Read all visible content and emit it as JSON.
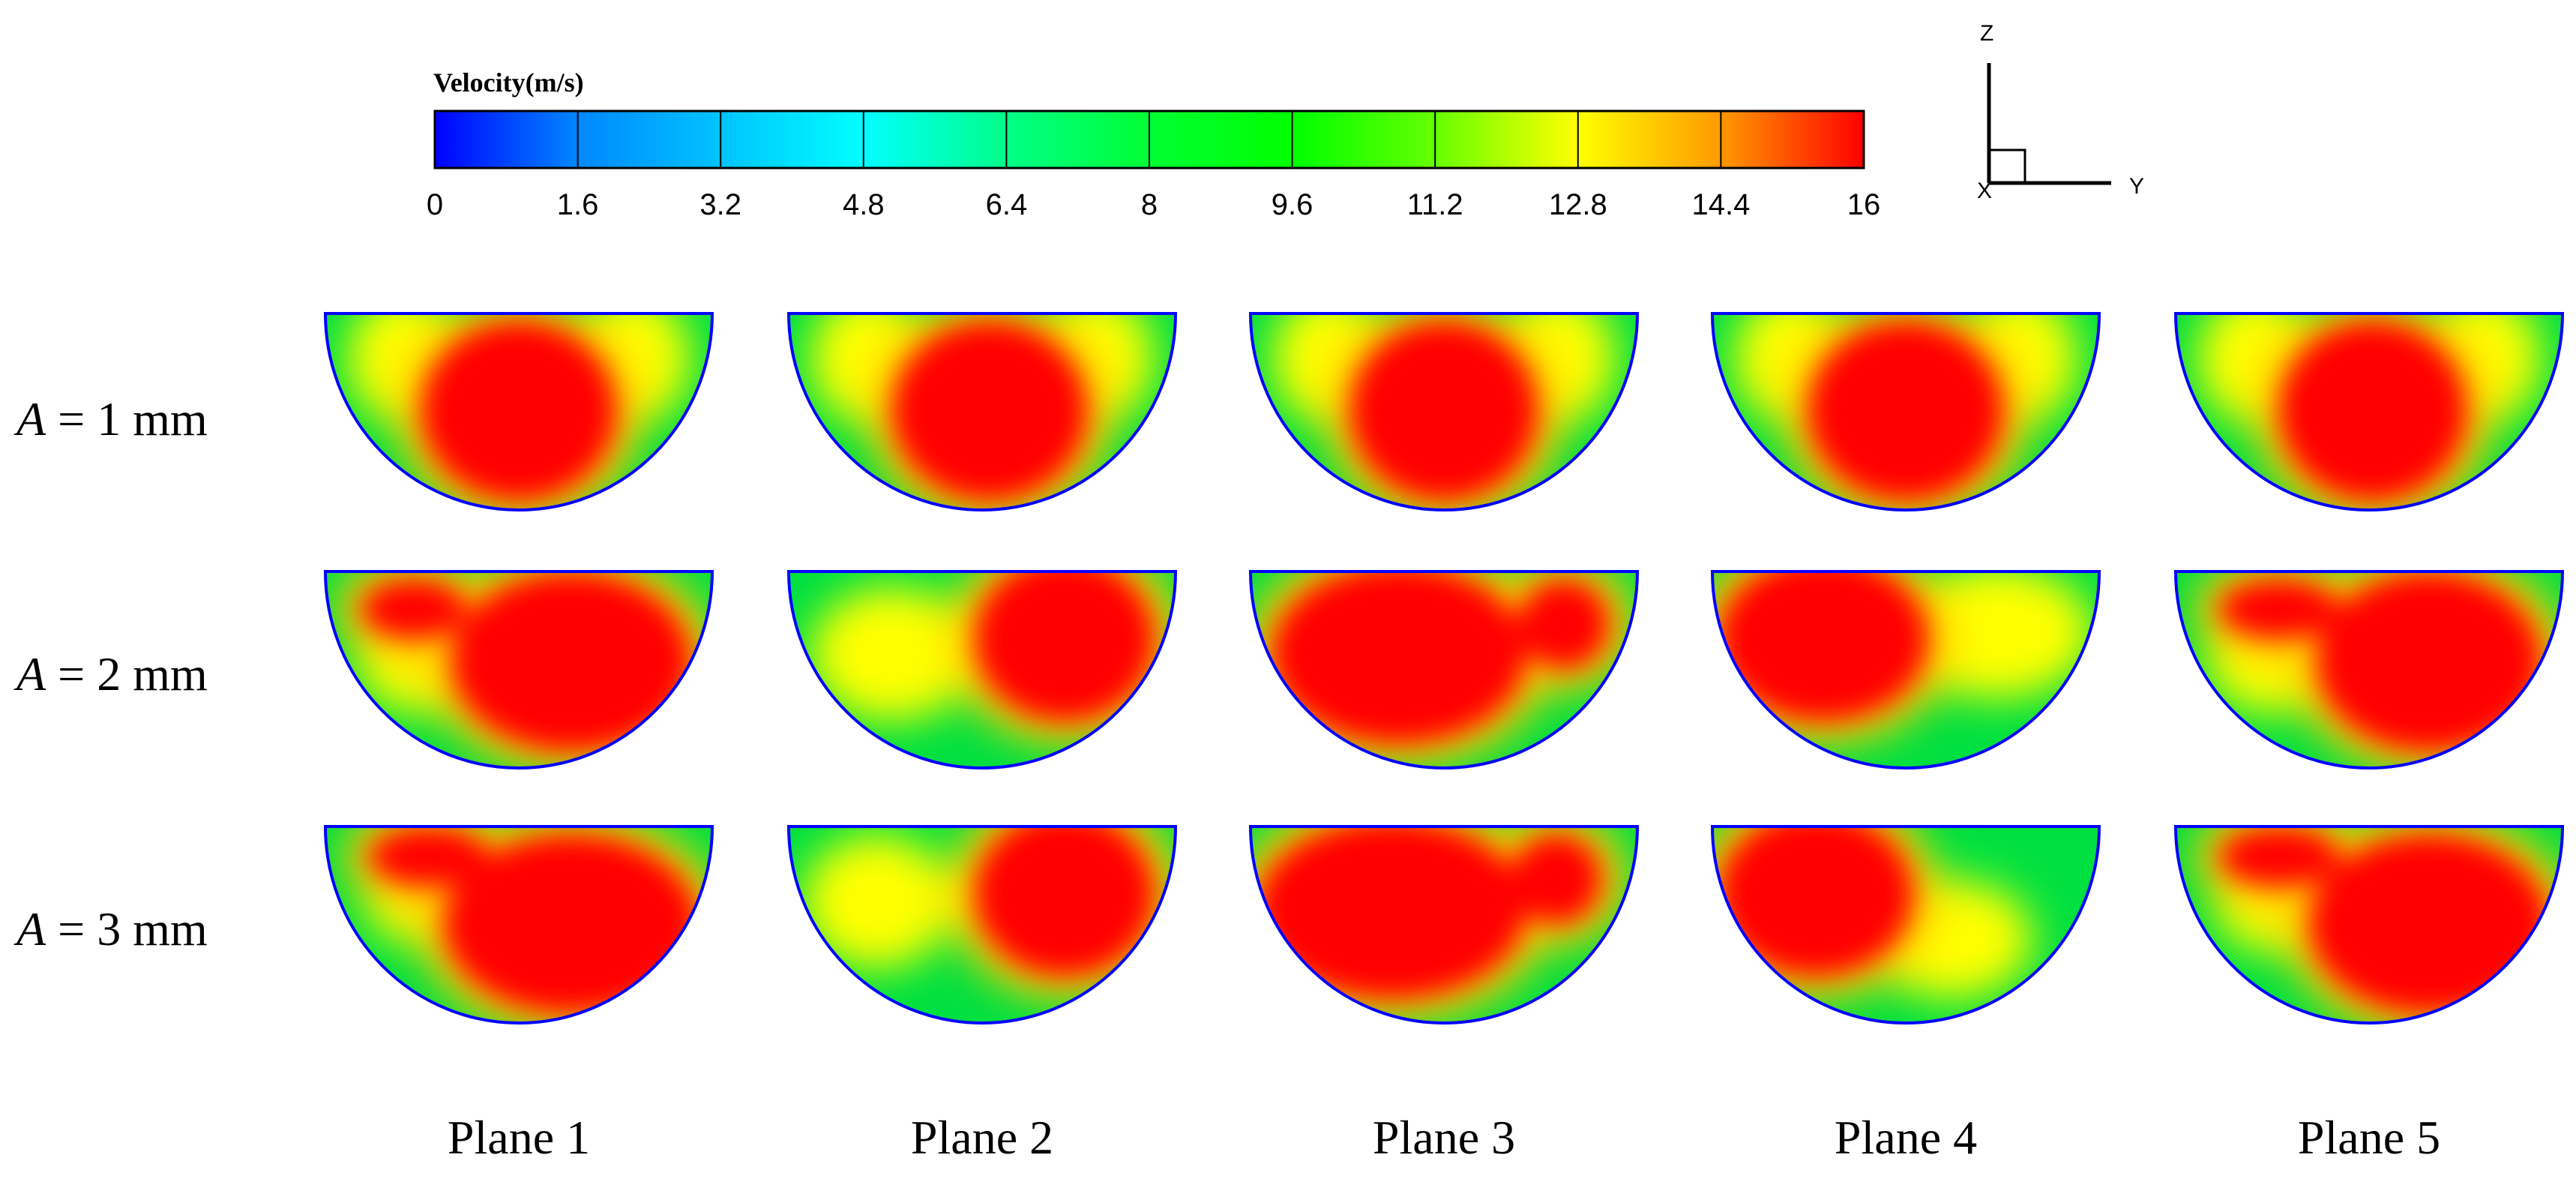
{
  "colorbar": {
    "title": "Velocity(m/s)",
    "ticks": [
      "0",
      "1.6",
      "3.2",
      "4.8",
      "6.4",
      "8",
      "9.6",
      "11.2",
      "12.8",
      "14.4",
      "16"
    ],
    "colors": [
      "#0000ff",
      "#0099ff",
      "#00ffff",
      "#00ff99",
      "#00ff66",
      "#00ff00",
      "#66ff00",
      "#ccff00",
      "#ffff00",
      "#ff9900",
      "#ff0000"
    ]
  },
  "axes": {
    "z": "Z",
    "y": "Y",
    "x": "X"
  },
  "rows": [
    {
      "var": "A",
      "value": "= 1 mm"
    },
    {
      "var": "A",
      "value": "= 2 mm"
    },
    {
      "var": "A",
      "value": "= 3 mm"
    }
  ],
  "columns": [
    "Plane 1",
    "Plane 2",
    "Plane 3",
    "Plane 4",
    "Plane 5"
  ],
  "contour_colors": {
    "wall": "#0000ff",
    "low": "#00e040",
    "mid": "#ffff00",
    "high": "#ff0000"
  }
}
